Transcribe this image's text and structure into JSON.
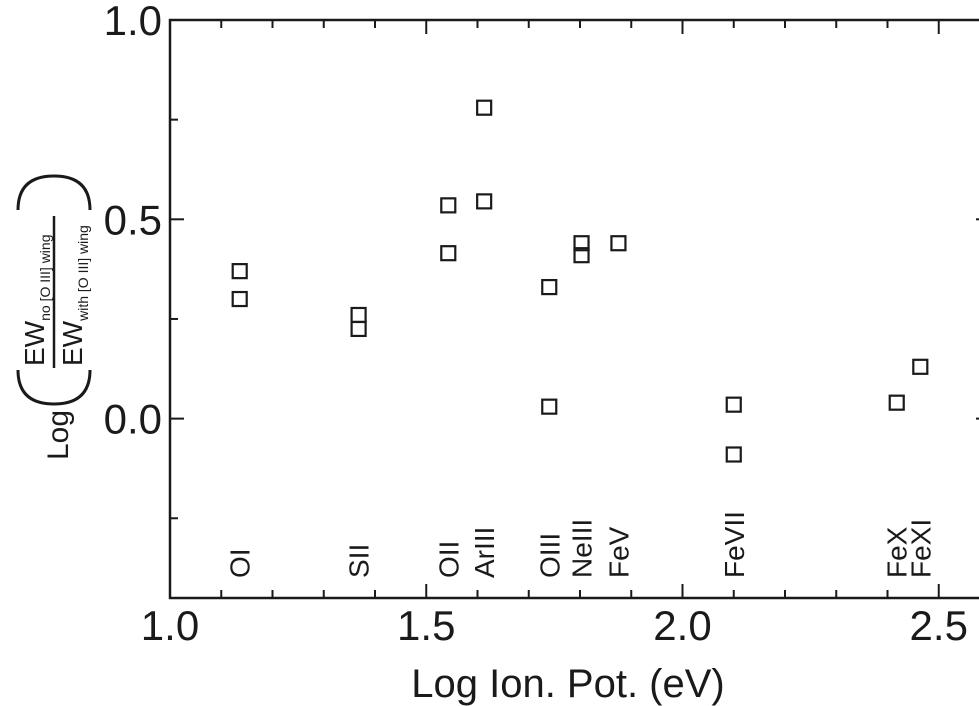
{
  "chart_data": {
    "type": "scatter",
    "xlabel": "Log Ion. Pot. (eV)",
    "ylabel": {
      "prefix": "Log",
      "numerator_main": "EW",
      "numerator_sub": "no [O III] wing",
      "denominator_main": "EW",
      "denominator_sub": "with [O III] wing"
    },
    "xlim": [
      1.0,
      2.6
    ],
    "ylim": [
      -0.45,
      1.0
    ],
    "x_ticks_major": [
      {
        "value": 1.0,
        "label": "1.0"
      },
      {
        "value": 1.5,
        "label": "1.5"
      },
      {
        "value": 2.0,
        "label": "2.0"
      },
      {
        "value": 2.5,
        "label": "2.5"
      }
    ],
    "x_ticks_minor": [
      1.1,
      1.2,
      1.3,
      1.4,
      1.6,
      1.7,
      1.8,
      1.9,
      2.1,
      2.2,
      2.3,
      2.4
    ],
    "y_ticks_major": [
      {
        "value": 0.0,
        "label": "0.0"
      },
      {
        "value": 0.5,
        "label": "0.5"
      },
      {
        "value": 1.0,
        "label": "1.0"
      }
    ],
    "y_ticks_minor": [
      -0.25,
      0.25,
      0.75
    ],
    "grid": false,
    "marker": "open-square",
    "points": [
      {
        "x": 1.136,
        "y": 0.37
      },
      {
        "x": 1.136,
        "y": 0.3
      },
      {
        "x": 1.368,
        "y": 0.26
      },
      {
        "x": 1.368,
        "y": 0.225
      },
      {
        "x": 1.543,
        "y": 0.535
      },
      {
        "x": 1.543,
        "y": 0.415
      },
      {
        "x": 1.613,
        "y": 0.78
      },
      {
        "x": 1.613,
        "y": 0.545
      },
      {
        "x": 1.74,
        "y": 0.33
      },
      {
        "x": 1.74,
        "y": 0.03
      },
      {
        "x": 1.803,
        "y": 0.44
      },
      {
        "x": 1.803,
        "y": 0.41
      },
      {
        "x": 1.875,
        "y": 0.44
      },
      {
        "x": 2.1,
        "y": 0.035
      },
      {
        "x": 2.1,
        "y": -0.09
      },
      {
        "x": 2.418,
        "y": 0.04
      },
      {
        "x": 2.464,
        "y": 0.13
      }
    ],
    "ion_labels": [
      {
        "x": 1.136,
        "text": "OI"
      },
      {
        "x": 1.368,
        "text": "SII"
      },
      {
        "x": 1.543,
        "text": "OII"
      },
      {
        "x": 1.613,
        "text": "ArIII"
      },
      {
        "x": 1.74,
        "text": "OIII"
      },
      {
        "x": 1.803,
        "text": "NeIII"
      },
      {
        "x": 1.875,
        "text": "FeV"
      },
      {
        "x": 2.1,
        "text": "FeVII"
      },
      {
        "x": 2.418,
        "text": "FeX"
      },
      {
        "x": 2.464,
        "text": "FeXI"
      }
    ]
  }
}
